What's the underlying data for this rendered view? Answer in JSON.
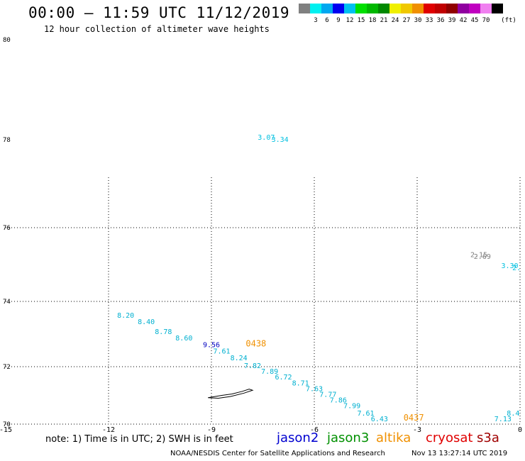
{
  "header": {
    "title": "00:00 – 11:59 UTC 11/12/2019",
    "subtitle": "12 hour collection of altimeter wave heights"
  },
  "scale": {
    "unit": "(ft)",
    "bins": [
      {
        "color": "#808080",
        "label": ""
      },
      {
        "color": "#00f0f0",
        "label": "3"
      },
      {
        "color": "#00a8f0",
        "label": "6"
      },
      {
        "color": "#0000f0",
        "label": "9"
      },
      {
        "color": "#00c0f0",
        "label": "12"
      },
      {
        "color": "#00e000",
        "label": "15"
      },
      {
        "color": "#00b800",
        "label": "18"
      },
      {
        "color": "#008800",
        "label": "21"
      },
      {
        "color": "#f0f000",
        "label": "24"
      },
      {
        "color": "#f0c800",
        "label": "27"
      },
      {
        "color": "#f09000",
        "label": "30"
      },
      {
        "color": "#e00000",
        "label": "33"
      },
      {
        "color": "#c00000",
        "label": "36"
      },
      {
        "color": "#900000",
        "label": "39"
      },
      {
        "color": "#9000a0",
        "label": "42"
      },
      {
        "color": "#c000c0",
        "label": "45"
      },
      {
        "color": "#f080f0",
        "label": "70"
      },
      {
        "color": "#000000",
        "label": ""
      }
    ]
  },
  "chart_data": {
    "type": "scatter",
    "xlim": [
      -15,
      0
    ],
    "ylim": [
      70,
      80
    ],
    "x_tick_labels": [
      "-15",
      "-12",
      "-9",
      "-6",
      "-3",
      "0"
    ],
    "y_tick_labels": [
      "70",
      "72",
      "74",
      "76",
      "78",
      "80"
    ],
    "grid": true,
    "observations": [
      {
        "lon": -7.4,
        "lat": 78.0,
        "value": "3.07",
        "color": "#00c0e0"
      },
      {
        "lon": -7.0,
        "lat": 77.95,
        "value": "3.34",
        "color": "#00c0e0"
      },
      {
        "lon": -1.2,
        "lat": 75.2,
        "value": "2.15",
        "color": "#808080"
      },
      {
        "lon": -1.1,
        "lat": 75.15,
        "value": "2.69",
        "color": "#808080"
      },
      {
        "lon": -0.3,
        "lat": 74.9,
        "value": "3.30",
        "color": "#00c0e0"
      },
      {
        "lon": -0.1,
        "lat": 74.85,
        "value": "2.",
        "color": "#00c0e0"
      },
      {
        "lon": -11.5,
        "lat": 73.5,
        "value": "8.20",
        "color": "#00b0d0"
      },
      {
        "lon": -10.9,
        "lat": 73.3,
        "value": "8.40",
        "color": "#00b0d0"
      },
      {
        "lon": -10.4,
        "lat": 73.0,
        "value": "8.78",
        "color": "#00b0d0"
      },
      {
        "lon": -9.8,
        "lat": 72.8,
        "value": "8.60",
        "color": "#00b0d0"
      },
      {
        "lon": -9.0,
        "lat": 72.6,
        "value": "9.56",
        "color": "#0000c0"
      },
      {
        "lon": -7.7,
        "lat": 72.62,
        "value": "0438",
        "color": "#f09000"
      },
      {
        "lon": -8.7,
        "lat": 72.4,
        "value": "7.61",
        "color": "#00b0d0"
      },
      {
        "lon": -8.2,
        "lat": 72.2,
        "value": "8.24",
        "color": "#00b0d0"
      },
      {
        "lon": -7.8,
        "lat": 71.95,
        "value": "7.82",
        "color": "#00b0d0"
      },
      {
        "lon": -7.3,
        "lat": 71.75,
        "value": "7.89",
        "color": "#00b0d0"
      },
      {
        "lon": -6.9,
        "lat": 71.55,
        "value": "6.72",
        "color": "#00b0d0"
      },
      {
        "lon": -6.4,
        "lat": 71.35,
        "value": "8.71",
        "color": "#00b0d0"
      },
      {
        "lon": -6.0,
        "lat": 71.15,
        "value": "7.63",
        "color": "#00b0d0"
      },
      {
        "lon": -5.6,
        "lat": 70.95,
        "value": "7.77",
        "color": "#00b0d0"
      },
      {
        "lon": -5.3,
        "lat": 70.75,
        "value": "7.86",
        "color": "#00b0d0"
      },
      {
        "lon": -4.9,
        "lat": 70.55,
        "value": "7.99",
        "color": "#00b0d0"
      },
      {
        "lon": -4.5,
        "lat": 70.3,
        "value": "7.61",
        "color": "#00b0d0"
      },
      {
        "lon": -4.1,
        "lat": 70.1,
        "value": "6.43",
        "color": "#00b0d0"
      },
      {
        "lon": -3.1,
        "lat": 70.12,
        "value": "0437",
        "color": "#f09000"
      },
      {
        "lon": -0.5,
        "lat": 70.1,
        "value": "7.13",
        "color": "#00b0d0"
      },
      {
        "lon": -0.2,
        "lat": 70.3,
        "value": "8.4",
        "color": "#00b0d0"
      }
    ],
    "island": [
      [
        -9.1,
        70.92
      ],
      [
        -8.7,
        71.0
      ],
      [
        -8.4,
        71.05
      ],
      [
        -8.1,
        71.14
      ],
      [
        -7.9,
        71.22
      ],
      [
        -7.8,
        71.18
      ],
      [
        -8.05,
        71.08
      ],
      [
        -8.45,
        70.96
      ],
      [
        -8.8,
        70.9
      ],
      [
        -9.1,
        70.92
      ]
    ]
  },
  "footer": {
    "note": "note: 1) Time is in UTC; 2) SWH is in feet",
    "credit": "NOAA/NESDIS Center for Satellite Applications and Research",
    "timestamp": "Nov 13 13:27:14 UTC 2019"
  },
  "legend": [
    {
      "label": "jason2",
      "color": "#0000d0"
    },
    {
      "label": "jason3",
      "color": "#009000"
    },
    {
      "label": "altika",
      "color": "#f09000"
    },
    {
      "label": "cryosat",
      "color": "#e00000"
    },
    {
      "label": "s3a",
      "color": "#a00000"
    }
  ]
}
